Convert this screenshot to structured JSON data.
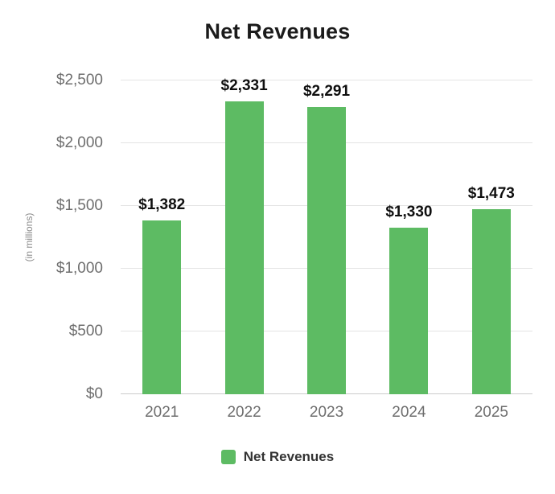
{
  "colors": {
    "bar": "#5dbb63",
    "grid": "#e4e4e4",
    "axis_text": "#6e6e6e",
    "title_text": "#1b1b1b"
  },
  "legend": {
    "label": "Net Revenues"
  },
  "chart_data": {
    "type": "bar",
    "title": "Net Revenues",
    "categories": [
      "2021",
      "2022",
      "2023",
      "2024",
      "2025"
    ],
    "values": [
      1382,
      2331,
      2291,
      1330,
      1473
    ],
    "value_labels": [
      "$1,382",
      "$2,331",
      "$2,291",
      "$1,330",
      "$1,473"
    ],
    "series_name": "Net Revenues",
    "xlabel": "",
    "ylabel": "(in millions)",
    "ylim": [
      0,
      2500
    ],
    "yticks": [
      0,
      500,
      1000,
      1500,
      2000,
      2500
    ],
    "ytick_labels": [
      "$0",
      "$500",
      "$1,000",
      "$1,500",
      "$2,000",
      "$2,500"
    ],
    "grid": true,
    "legend_position": "bottom"
  }
}
